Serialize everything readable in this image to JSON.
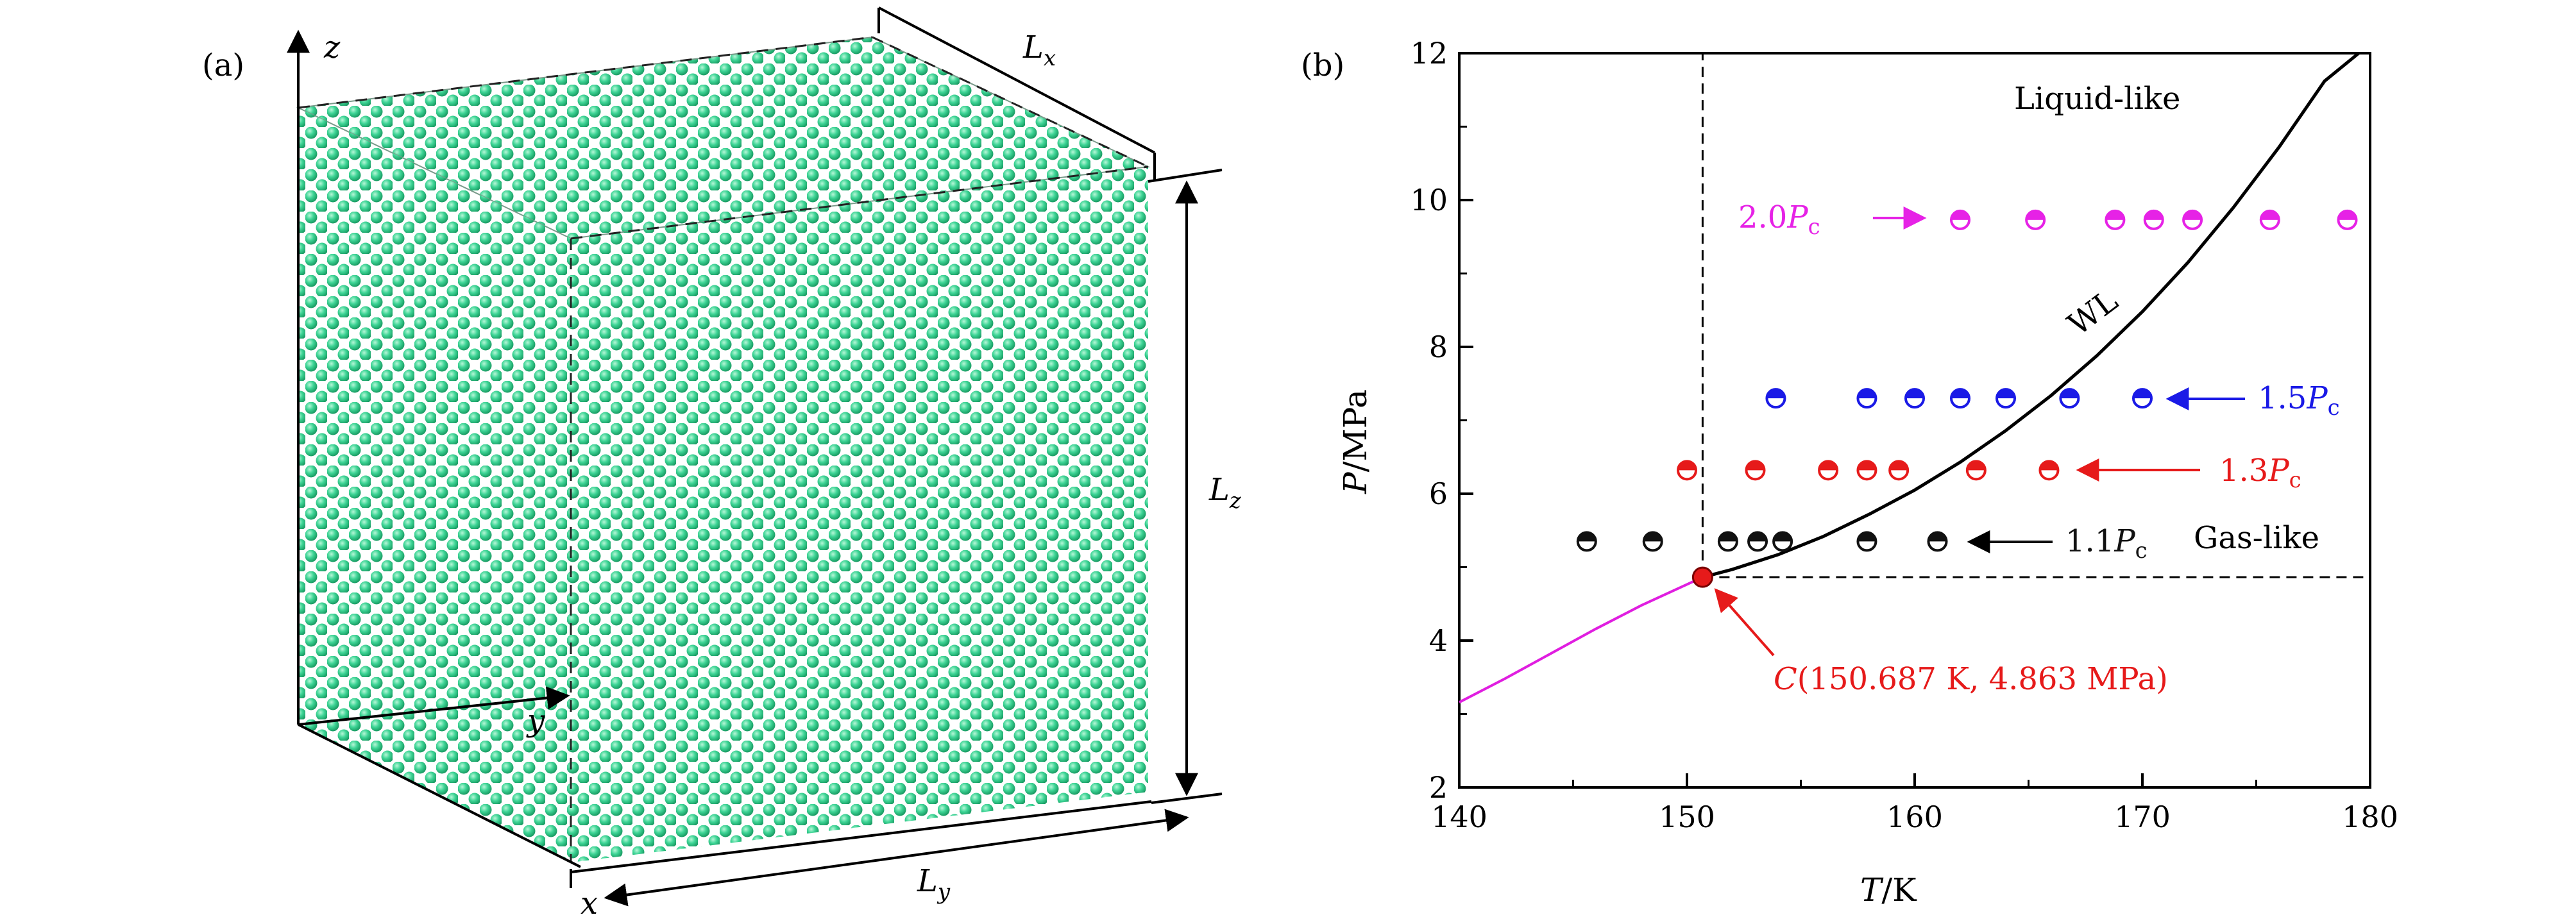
{
  "panel_a": {
    "label": "(a)",
    "axis_x": "x",
    "axis_y": "y",
    "axis_z": "z",
    "dim_x": {
      "base": "L",
      "sub": "x"
    },
    "dim_y": {
      "base": "L",
      "sub": "y"
    },
    "dim_z": {
      "base": "L",
      "sub": "z"
    },
    "atom_color": "#3ed596"
  },
  "panel_b": {
    "label": "(b)",
    "region_liquid": "Liquid-like",
    "region_gas": "Gas-like",
    "widom_label": "WL",
    "critical_point": {
      "prefix": "C",
      "coords": "(150.687 K, 4.863 MPa)",
      "T": 150.687,
      "P": 4.863
    },
    "series_labels": [
      {
        "value": "2.0",
        "sub": "c"
      },
      {
        "value": "1.5",
        "sub": "c"
      },
      {
        "value": "1.3",
        "sub": "c"
      },
      {
        "value": "1.1",
        "sub": "c"
      }
    ],
    "xlabel_var": "T",
    "xlabel_unit": "/K",
    "ylabel_var": "P",
    "ylabel_unit": "/MPa"
  },
  "chart_data": {
    "type": "scatter",
    "xlim": [
      140,
      180
    ],
    "ylim": [
      2,
      12
    ],
    "x_ticks": [
      "140",
      "150",
      "160",
      "170",
      "180"
    ],
    "y_ticks": [
      "2",
      "4",
      "6",
      "8",
      "10",
      "12"
    ],
    "grid": false,
    "colors": {
      "p20": "#e622e6",
      "p15": "#1a1ae6",
      "p13": "#e61a1a",
      "p11": "#111111",
      "sub_critical": "#e01ee0",
      "widom": "#000000"
    },
    "series": [
      {
        "P": 9.73,
        "color_key": "p20",
        "T": [
          162.0,
          165.3,
          168.8,
          170.5,
          172.2,
          175.6,
          179.0
        ]
      },
      {
        "P": 7.3,
        "color_key": "p15",
        "T": [
          153.9,
          157.9,
          160.0,
          162.0,
          164.0,
          166.8,
          170.0
        ]
      },
      {
        "P": 6.32,
        "color_key": "p13",
        "T": [
          150.0,
          153.0,
          156.2,
          157.9,
          159.3,
          162.7,
          165.9
        ]
      },
      {
        "P": 5.35,
        "color_key": "p11",
        "T": [
          145.6,
          148.5,
          151.8,
          153.1,
          154.2,
          157.9,
          161.0
        ]
      }
    ],
    "sub_critical_curve": {
      "T": [
        140,
        142,
        144,
        146,
        148,
        150.687
      ],
      "P": [
        3.16,
        3.48,
        3.82,
        4.16,
        4.48,
        4.863
      ]
    },
    "widom_line": {
      "T": [
        150.687,
        152,
        154,
        156,
        158,
        160,
        162,
        164,
        166,
        168,
        170,
        172,
        174,
        176,
        178,
        179.5
      ],
      "P": [
        4.863,
        4.97,
        5.17,
        5.42,
        5.72,
        6.05,
        6.43,
        6.86,
        7.34,
        7.88,
        8.48,
        9.15,
        9.9,
        10.72,
        11.62,
        12.0
      ]
    }
  }
}
